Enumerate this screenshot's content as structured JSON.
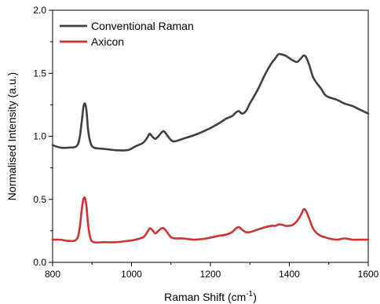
{
  "chart_data": {
    "type": "line",
    "xlabel": "Raman Shift (cm",
    "xlabel_sup": "-1",
    "xlabel_close": ")",
    "ylabel": "Normalised Intensity (a.u.)",
    "xlim": [
      800,
      1600
    ],
    "ylim": [
      0.0,
      2.0
    ],
    "xticks": [
      800,
      1000,
      1200,
      1400,
      1600
    ],
    "xtick_labels": [
      "800",
      "1000",
      "1200",
      "1400",
      "1600"
    ],
    "yticks": [
      0.0,
      0.5,
      1.0,
      1.5,
      2.0
    ],
    "ytick_labels": [
      "0.0",
      "0.5",
      "1.0",
      "1.5",
      "2.0"
    ],
    "legend_position": "top-left",
    "series": [
      {
        "name": "Conventional Raman",
        "color": "#404040",
        "x": [
          800,
          820,
          840,
          860,
          868,
          874,
          878,
          882,
          886,
          890,
          896,
          905,
          930,
          960,
          990,
          1010,
          1030,
          1040,
          1046,
          1052,
          1060,
          1068,
          1076,
          1082,
          1090,
          1100,
          1110,
          1130,
          1160,
          1190,
          1220,
          1240,
          1255,
          1265,
          1272,
          1280,
          1290,
          1300,
          1320,
          1340,
          1355,
          1365,
          1372,
          1380,
          1390,
          1400,
          1410,
          1420,
          1430,
          1436,
          1442,
          1450,
          1460,
          1470,
          1480,
          1490,
          1500,
          1520,
          1540,
          1560,
          1580,
          1600
        ],
        "y": [
          0.93,
          0.91,
          0.91,
          0.92,
          0.98,
          1.12,
          1.23,
          1.26,
          1.2,
          1.05,
          0.95,
          0.91,
          0.9,
          0.89,
          0.89,
          0.92,
          0.95,
          0.99,
          1.02,
          1.0,
          0.98,
          1.0,
          1.03,
          1.04,
          1.01,
          0.97,
          0.96,
          0.98,
          1.01,
          1.05,
          1.1,
          1.14,
          1.16,
          1.19,
          1.2,
          1.18,
          1.2,
          1.26,
          1.37,
          1.5,
          1.58,
          1.62,
          1.65,
          1.65,
          1.64,
          1.62,
          1.6,
          1.59,
          1.62,
          1.64,
          1.63,
          1.57,
          1.47,
          1.42,
          1.38,
          1.33,
          1.31,
          1.29,
          1.26,
          1.24,
          1.21,
          1.18
        ]
      },
      {
        "name": "Axicon",
        "color": "#cc3333",
        "x": [
          800,
          820,
          840,
          860,
          868,
          874,
          878,
          882,
          886,
          890,
          896,
          905,
          930,
          960,
          990,
          1010,
          1030,
          1040,
          1046,
          1052,
          1060,
          1068,
          1076,
          1082,
          1090,
          1100,
          1110,
          1130,
          1160,
          1190,
          1220,
          1240,
          1255,
          1265,
          1272,
          1280,
          1290,
          1300,
          1320,
          1340,
          1355,
          1365,
          1372,
          1380,
          1390,
          1400,
          1410,
          1420,
          1430,
          1436,
          1442,
          1450,
          1460,
          1470,
          1480,
          1490,
          1500,
          1520,
          1540,
          1560,
          1580,
          1600
        ],
        "y": [
          0.18,
          0.18,
          0.17,
          0.18,
          0.26,
          0.42,
          0.5,
          0.51,
          0.44,
          0.3,
          0.19,
          0.16,
          0.16,
          0.16,
          0.17,
          0.18,
          0.2,
          0.24,
          0.27,
          0.26,
          0.23,
          0.25,
          0.27,
          0.27,
          0.24,
          0.2,
          0.19,
          0.19,
          0.18,
          0.19,
          0.21,
          0.22,
          0.24,
          0.27,
          0.28,
          0.26,
          0.24,
          0.24,
          0.26,
          0.28,
          0.29,
          0.29,
          0.3,
          0.3,
          0.29,
          0.29,
          0.3,
          0.33,
          0.38,
          0.42,
          0.41,
          0.35,
          0.27,
          0.23,
          0.21,
          0.2,
          0.19,
          0.18,
          0.19,
          0.18,
          0.18,
          0.18
        ]
      }
    ]
  }
}
